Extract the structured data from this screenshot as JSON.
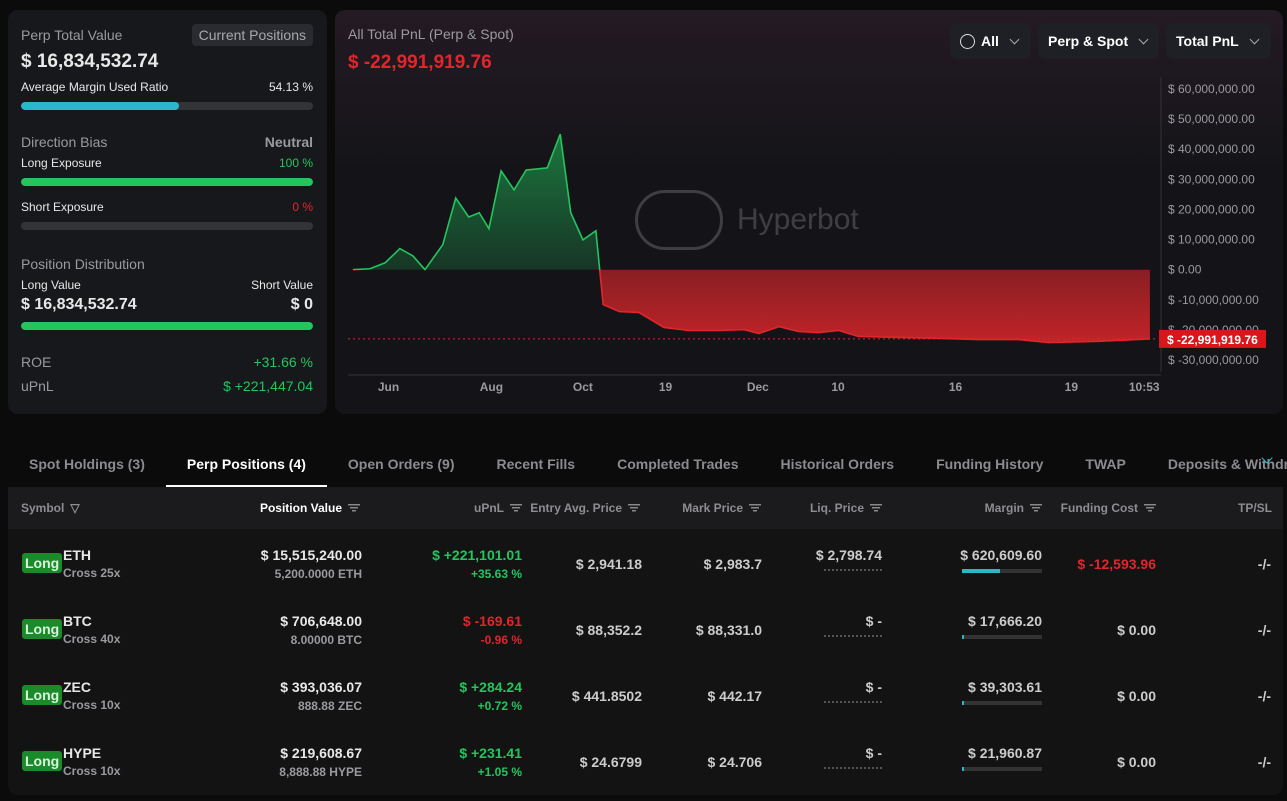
{
  "summary": {
    "title": "Perp Total Value",
    "tag": "Current Positions",
    "total": "$ 16,834,532.74",
    "margin_label": "Average Margin Used Ratio",
    "margin_ratio": "54.13 %",
    "margin_pct": 54.13,
    "bias_label": "Direction Bias",
    "bias_value": "Neutral",
    "long_exp_label": "Long Exposure",
    "long_exp": "100 %",
    "long_exp_pct": 100,
    "short_exp_label": "Short Exposure",
    "short_exp": "0 %",
    "short_exp_pct": 0,
    "dist_label": "Position Distribution",
    "long_value_label": "Long Value",
    "short_value_label": "Short Value",
    "long_value": "$ 16,834,532.74",
    "short_value": "$ 0",
    "long_share_pct": 100,
    "roe_label": "ROE",
    "roe": "+31.66 %",
    "upnl_label": "uPnL",
    "upnl": "$ +221,447.04"
  },
  "chart_panel": {
    "title": "All Total PnL (Perp & Spot)",
    "value": "$ -22,991,919.76",
    "filters": [
      "All",
      "Perp & Spot",
      "Total PnL"
    ],
    "watermark": "Hyperbot",
    "colors": {
      "positive": "#22c55e",
      "negative": "#e0262b"
    }
  },
  "chart_data": {
    "type": "area",
    "title": "All Total PnL (Perp & Spot)",
    "ylim": [
      -30000000,
      60000000
    ],
    "y_ticks": [
      "$ 60,000,000.00",
      "$ 50,000,000.00",
      "$ 40,000,000.00",
      "$ 30,000,000.00",
      "$ 20,000,000.00",
      "$ 10,000,000.00",
      "$ 0.00",
      "$ -10,000,000.00",
      "$ -20,000,000.00",
      "$ -30,000,000.00"
    ],
    "x_ticks": [
      {
        "label": "Jun",
        "t": 5
      },
      {
        "label": "Aug",
        "t": 17.7
      },
      {
        "label": "Oct",
        "t": 29
      },
      {
        "label": "19",
        "t": 39.2
      },
      {
        "label": "Dec",
        "t": 50.6
      },
      {
        "label": "10",
        "t": 60.5
      },
      {
        "label": "16",
        "t": 75
      },
      {
        "label": "19",
        "t": 89.3
      },
      {
        "label": "10:53",
        "t": 98.3
      }
    ],
    "current_label": "$ -22,991,919.76",
    "series": [
      {
        "name": "Total PnL (M USD)",
        "points": [
          [
            0.6,
            0
          ],
          [
            2.7,
            0.3
          ],
          [
            4.6,
            2.3
          ],
          [
            6.4,
            7
          ],
          [
            8,
            4.6
          ],
          [
            9.5,
            0
          ],
          [
            11.7,
            8.3
          ],
          [
            13.3,
            23.8
          ],
          [
            14.9,
            17.5
          ],
          [
            16.2,
            18.9
          ],
          [
            17.4,
            13.6
          ],
          [
            18.9,
            32.8
          ],
          [
            20.5,
            26.5
          ],
          [
            22,
            33.1
          ],
          [
            24.6,
            33.8
          ],
          [
            26.2,
            45
          ],
          [
            27.5,
            18.9
          ],
          [
            29,
            9.9
          ],
          [
            30.6,
            12.9
          ],
          [
            31.5,
            -11.6
          ],
          [
            33.5,
            -13.9
          ],
          [
            35.9,
            -14.2
          ],
          [
            39,
            -19.2
          ],
          [
            42.1,
            -20.2
          ],
          [
            45.8,
            -20.2
          ],
          [
            48.9,
            -19.9
          ],
          [
            50.7,
            -21.2
          ],
          [
            53.2,
            -18.9
          ],
          [
            55.6,
            -20.5
          ],
          [
            58.1,
            -20.9
          ],
          [
            60.6,
            -20.2
          ],
          [
            63,
            -22.2
          ],
          [
            68,
            -22.5
          ],
          [
            72.9,
            -22.8
          ],
          [
            77.9,
            -23.2
          ],
          [
            82.8,
            -23.2
          ],
          [
            86.5,
            -24.2
          ],
          [
            92.7,
            -23.8
          ],
          [
            99,
            -23
          ]
        ]
      }
    ]
  },
  "tabs": [
    "Spot Holdings (3)",
    "Perp Positions (4)",
    "Open Orders (9)",
    "Recent Fills",
    "Completed Trades",
    "Historical Orders",
    "Funding History",
    "TWAP",
    "Deposits & Withdraw"
  ],
  "table": {
    "headers": [
      "Symbol",
      "Position Value",
      "uPnL",
      "Entry Avg. Price",
      "Mark Price",
      "Liq. Price",
      "Margin",
      "Funding Cost",
      "TP/SL"
    ],
    "rows": [
      {
        "side": "Long",
        "symbol": "ETH",
        "mode": "Cross 25x",
        "value": "$ 15,515,240.00",
        "size": "5,200.0000 ETH",
        "upnl": "$ +221,101.01",
        "upnl_pct": "+35.63 %",
        "pos": true,
        "entry": "$ 2,941.18",
        "mark": "$ 2,983.7",
        "liq": "$ 2,798.74",
        "margin": "$ 620,609.60",
        "margin_fill": 48,
        "funding": "$ -12,593.96",
        "funding_neg": true,
        "tpsl": "-/-"
      },
      {
        "side": "Long",
        "symbol": "BTC",
        "mode": "Cross 40x",
        "value": "$ 706,648.00",
        "size": "8.00000 BTC",
        "upnl": "$ -169.61",
        "upnl_pct": "-0.96 %",
        "pos": false,
        "entry": "$ 88,352.2",
        "mark": "$ 88,331.0",
        "liq": "$ -",
        "margin": "$ 17,666.20",
        "margin_fill": 2,
        "funding": "$ 0.00",
        "funding_neg": false,
        "tpsl": "-/-"
      },
      {
        "side": "Long",
        "symbol": "ZEC",
        "mode": "Cross 10x",
        "value": "$ 393,036.07",
        "size": "888.88 ZEC",
        "upnl": "$ +284.24",
        "upnl_pct": "+0.72 %",
        "pos": true,
        "entry": "$ 441.8502",
        "mark": "$ 442.17",
        "liq": "$ -",
        "margin": "$ 39,303.61",
        "margin_fill": 3,
        "funding": "$ 0.00",
        "funding_neg": false,
        "tpsl": "-/-"
      },
      {
        "side": "Long",
        "symbol": "HYPE",
        "mode": "Cross 10x",
        "value": "$ 219,608.67",
        "size": "8,888.88 HYPE",
        "upnl": "$ +231.41",
        "upnl_pct": "+1.05 %",
        "pos": true,
        "entry": "$ 24.6799",
        "mark": "$ 24.706",
        "liq": "$ -",
        "margin": "$ 21,960.87",
        "margin_fill": 2,
        "funding": "$ 0.00",
        "funding_neg": false,
        "tpsl": "-/-"
      }
    ]
  }
}
